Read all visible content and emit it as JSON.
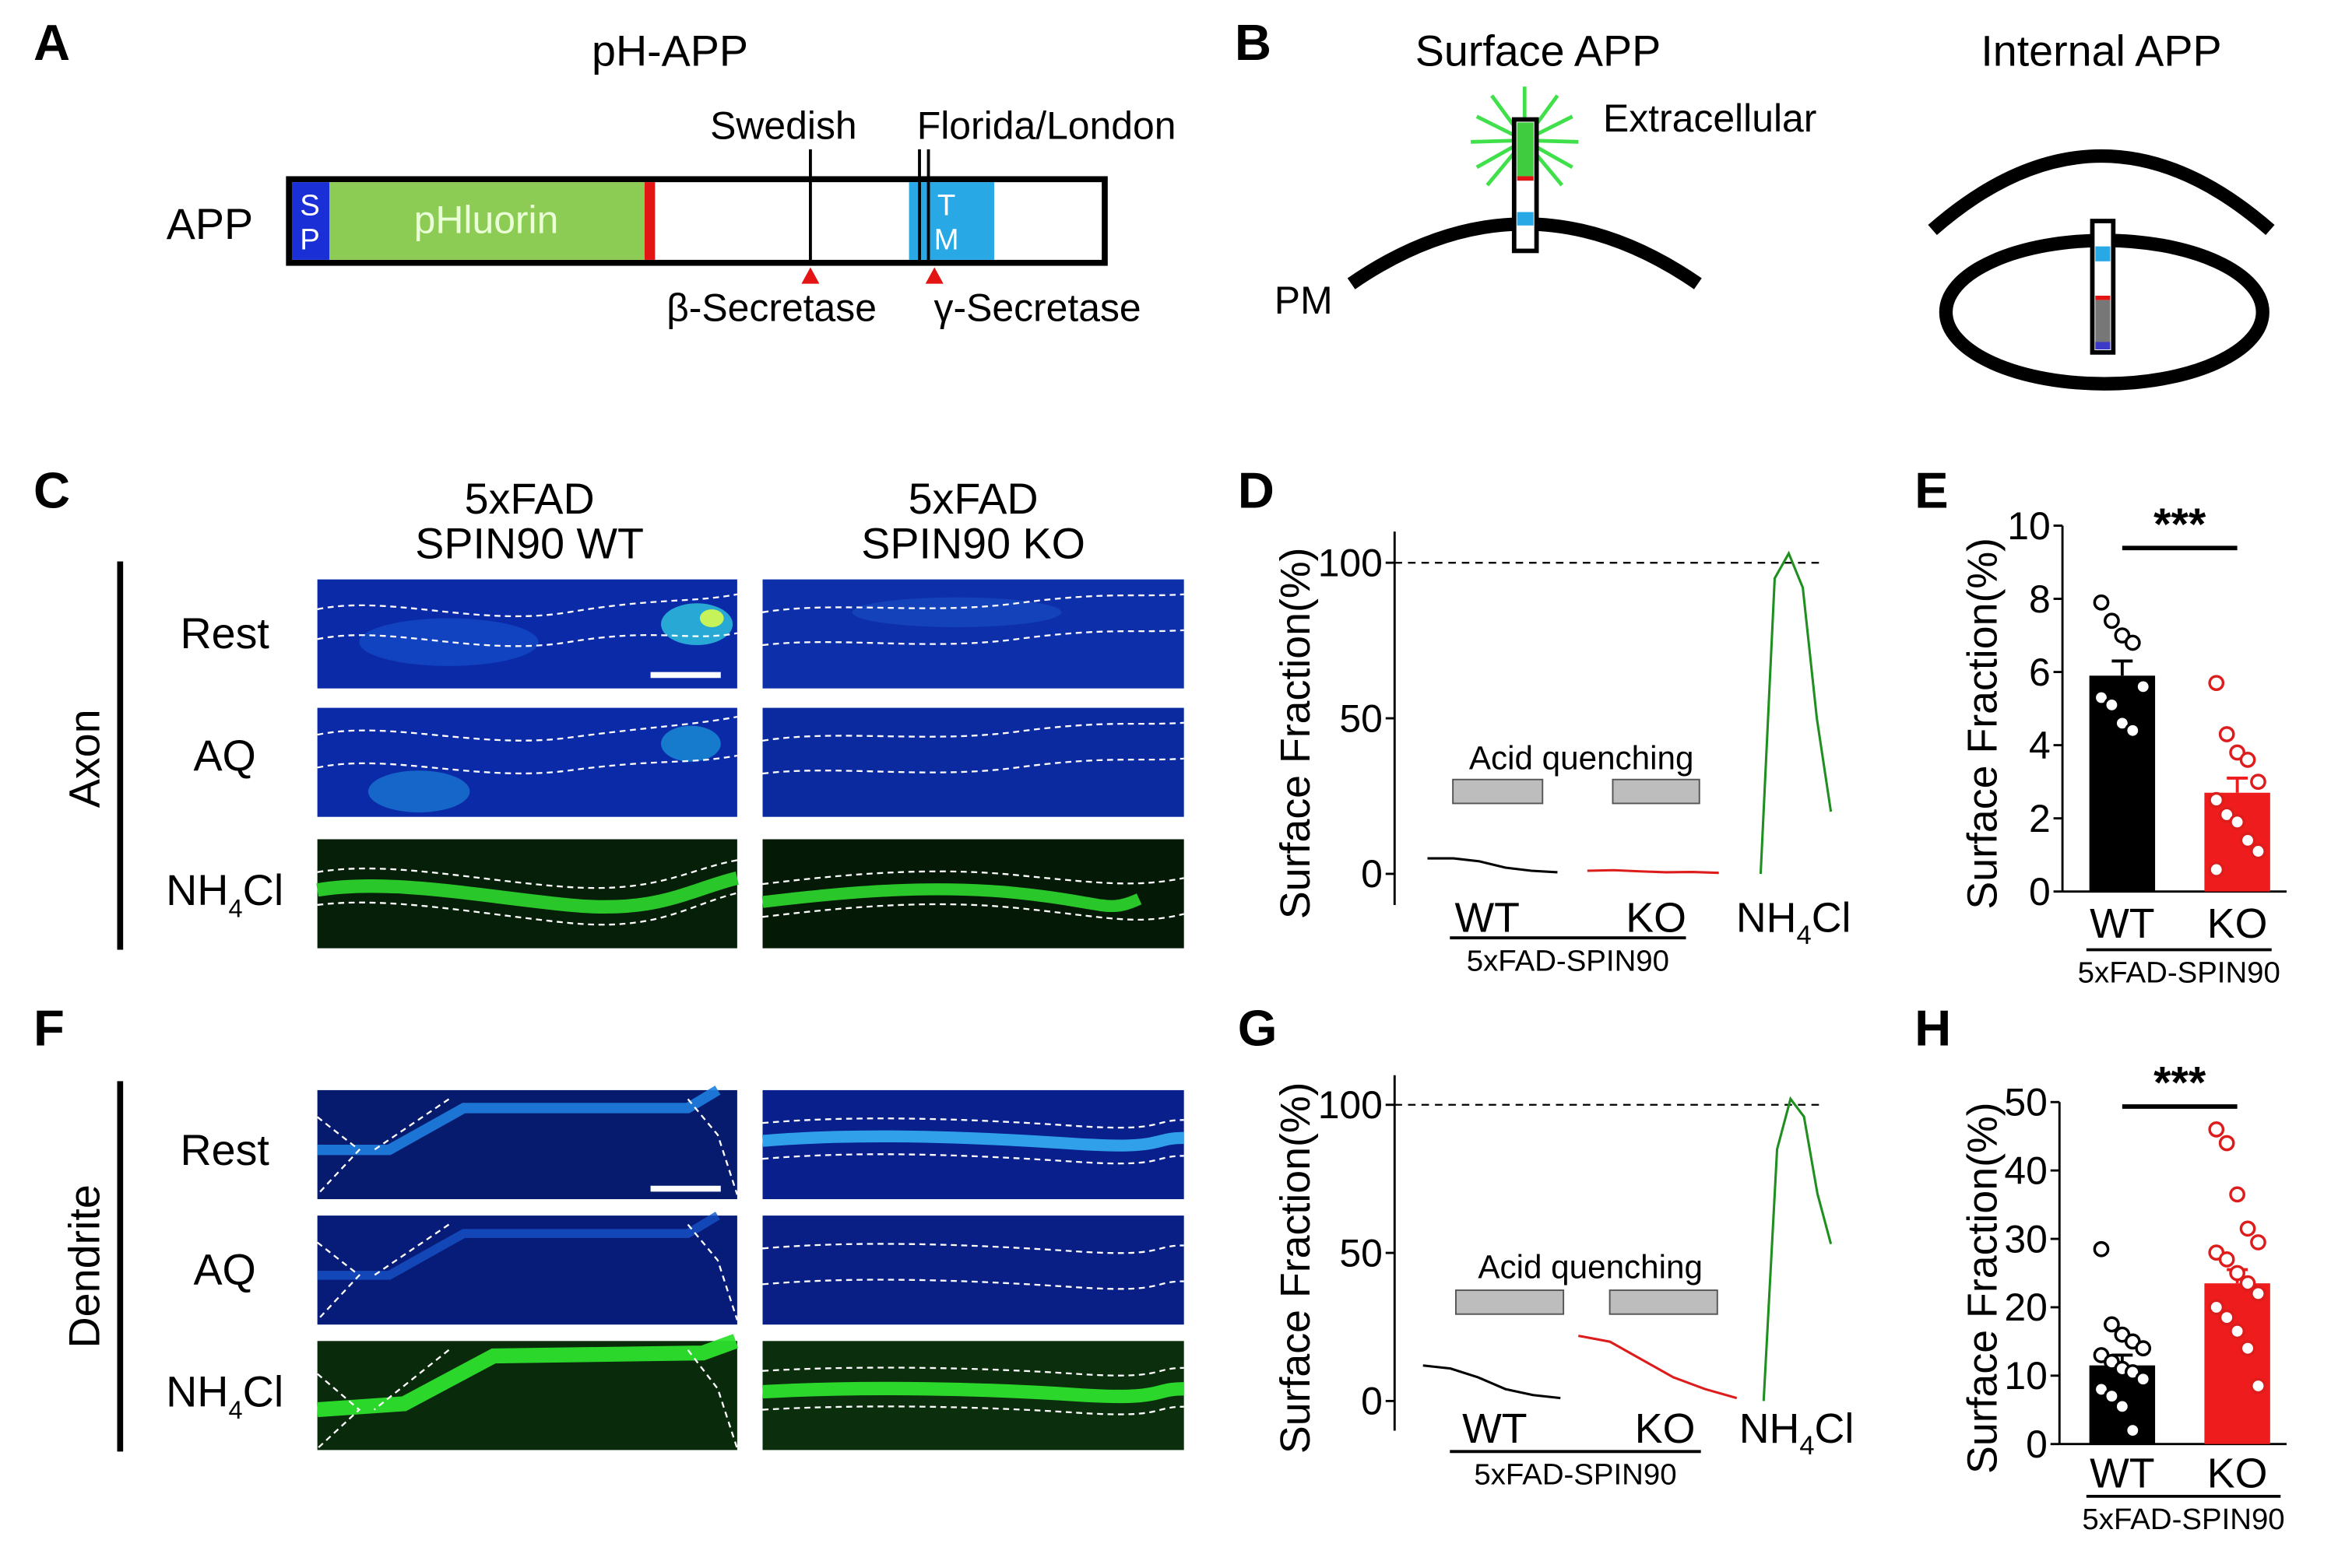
{
  "panels": {
    "A": {
      "letter": "A",
      "title": "pH-APP",
      "row_label": "APP",
      "sp_label": "S\nP",
      "domain_label": "pHluorin",
      "tm_label": "T\nM",
      "mutation_1": "Swedish",
      "mutation_2": "Florida/London",
      "enzyme_1": "β-Secretase",
      "enzyme_2": "γ-Secretase"
    },
    "B": {
      "letter": "B",
      "surface_title": "Surface APP",
      "extracellular_label": "Extracellular",
      "pm_label": "PM",
      "internal_title": "Internal APP"
    },
    "C": {
      "letter": "C",
      "col_1": [
        "5xFAD",
        "SPIN90 WT"
      ],
      "col_2": [
        "5xFAD",
        "SPIN90 KO"
      ],
      "side_label": "Axon",
      "rows": [
        "Rest",
        "AQ",
        "NH4Cl"
      ]
    },
    "F": {
      "letter": "F",
      "side_label": "Dendrite",
      "rows": [
        "Rest",
        "AQ",
        "NH4Cl"
      ]
    },
    "D": {
      "letter": "D"
    },
    "G": {
      "letter": "G"
    },
    "E": {
      "letter": "E"
    },
    "H": {
      "letter": "H"
    }
  },
  "colors": {
    "black": "#000000",
    "wt_trace": "#000000",
    "ko_trace": "#dd1c1c",
    "nh4cl_trace": "#1f8f1f",
    "pHluorin_green": "#8ccc55",
    "sp_blue": "#1a2fd6",
    "tm_blue": "#29a8e6",
    "mark_red": "#e31414",
    "ko_bar": "#ee1c1c",
    "quench_box": "#bdbdbd"
  },
  "chart_data": [
    {
      "id": "D",
      "type": "line",
      "ylabel": "Surface Fraction(%)",
      "yticks": [
        0,
        50,
        100
      ],
      "ylim": [
        -10,
        110
      ],
      "reference_line": 100,
      "annotation": "Acid quenching",
      "group_label": "5xFAD-SPIN90",
      "series": [
        {
          "name": "WT",
          "values": [
            5,
            5,
            4,
            2,
            1,
            0.5
          ]
        },
        {
          "name": "KO",
          "values": [
            1,
            1.2,
            0.8,
            0.5,
            0.6,
            0.3
          ]
        },
        {
          "name": "NH4Cl",
          "values": [
            0,
            95,
            103,
            92,
            50,
            20
          ]
        }
      ]
    },
    {
      "id": "E",
      "type": "bar",
      "ylabel": "Surface Fraction(%)",
      "categories": [
        "WT",
        "KO"
      ],
      "values": [
        5.9,
        2.7
      ],
      "errors": [
        0.4,
        0.4
      ],
      "ylim": [
        0,
        10
      ],
      "yticks": [
        0,
        2,
        4,
        6,
        8,
        10
      ],
      "significance": "***",
      "group_label": "5xFAD-SPIN90",
      "points": [
        [
          7.9,
          7.4,
          7.0,
          6.8,
          5.6,
          5.3,
          5.1,
          4.6,
          4.4
        ],
        [
          5.7,
          4.3,
          3.8,
          3.6,
          3.0,
          2.5,
          2.1,
          1.9,
          1.4,
          1.1,
          0.6
        ]
      ]
    },
    {
      "id": "G",
      "type": "line",
      "ylabel": "Surface Fraction(%)",
      "yticks": [
        0,
        50,
        100
      ],
      "ylim": [
        -10,
        110
      ],
      "reference_line": 100,
      "annotation": "Acid quenching",
      "group_label": "5xFAD-SPIN90",
      "series": [
        {
          "name": "WT",
          "values": [
            12,
            11,
            8,
            4,
            2,
            1
          ]
        },
        {
          "name": "KO",
          "values": [
            22,
            20,
            14,
            8,
            4,
            1
          ]
        },
        {
          "name": "NH4Cl",
          "values": [
            0,
            85,
            102,
            96,
            70,
            53
          ]
        }
      ]
    },
    {
      "id": "H",
      "type": "bar",
      "ylabel": "Surface Fraction(%)",
      "categories": [
        "WT",
        "KO"
      ],
      "values": [
        11.5,
        23.5
      ],
      "errors": [
        1.5,
        2.0
      ],
      "ylim": [
        0,
        50
      ],
      "yticks": [
        0,
        10,
        20,
        30,
        40,
        50
      ],
      "significance": "***",
      "group_label": "5xFAD-SPIN90",
      "points": [
        [
          28.5,
          17.5,
          16,
          15,
          14,
          13,
          12,
          11,
          10.5,
          9.5,
          8,
          7,
          5.5,
          2
        ],
        [
          46,
          44,
          36.5,
          31.5,
          29.5,
          28,
          27,
          25,
          23.5,
          22,
          20,
          18.5,
          16.5,
          14,
          8.5
        ]
      ]
    }
  ]
}
